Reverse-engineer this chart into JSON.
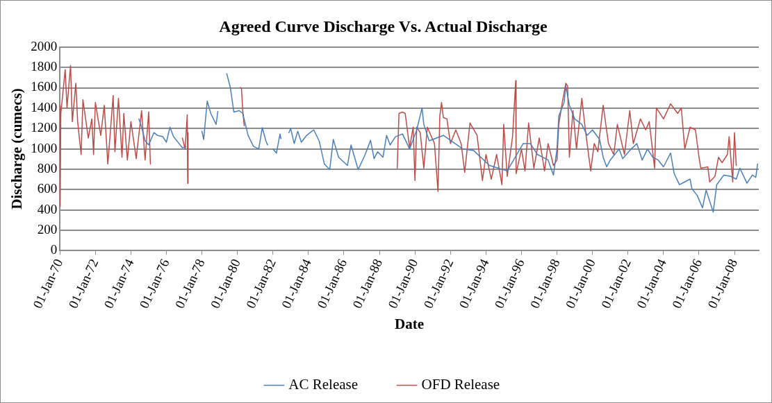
{
  "chart_data": {
    "type": "line",
    "title": "Agreed Curve Discharge Vs. Actual Discharge",
    "xlabel": "Date",
    "ylabel": "Discharge (cumecs)",
    "xlim": [
      "1970-01-01",
      "2009-05-15"
    ],
    "xticks": [
      {
        "value": "1970-01-01",
        "label": "01-Jan-70"
      },
      {
        "value": "1972-01-01",
        "label": "01-Jan-72"
      },
      {
        "value": "1974-01-01",
        "label": "01-Jan-74"
      },
      {
        "value": "1976-01-01",
        "label": "01-Jan-76"
      },
      {
        "value": "1978-01-01",
        "label": "01-Jan-78"
      },
      {
        "value": "1980-01-01",
        "label": "01-Jan-80"
      },
      {
        "value": "1982-01-01",
        "label": "01-Jan-82"
      },
      {
        "value": "1984-01-01",
        "label": "01-Jan-84"
      },
      {
        "value": "1986-01-01",
        "label": "01-Jan-86"
      },
      {
        "value": "1988-01-01",
        "label": "01-Jan-88"
      },
      {
        "value": "1990-01-01",
        "label": "01-Jan-90"
      },
      {
        "value": "1992-01-01",
        "label": "01-Jan-92"
      },
      {
        "value": "1994-01-01",
        "label": "01-Jan-94"
      },
      {
        "value": "1996-01-01",
        "label": "01-Jan-96"
      },
      {
        "value": "1998-01-01",
        "label": "01-Jan-98"
      },
      {
        "value": "2000-01-01",
        "label": "01-Jan-00"
      },
      {
        "value": "2002-01-01",
        "label": "01-Jan-02"
      },
      {
        "value": "2004-01-01",
        "label": "01-Jan-04"
      },
      {
        "value": "2006-01-01",
        "label": "01-Jan-06"
      },
      {
        "value": "2008-01-01",
        "label": "01-Jan-08"
      }
    ],
    "ylim": [
      0,
      2000
    ],
    "yticks": [
      0,
      200,
      400,
      600,
      800,
      1000,
      1200,
      1400,
      1600,
      1800,
      2000
    ],
    "grid": "y",
    "legend": "bottom",
    "marker": "none",
    "line_style": "solid",
    "series": [
      {
        "name": "AC Release",
        "color": "#4a7ebb",
        "x": [
          "1974-06-14",
          "1974-08-08",
          "1974-10-20",
          "1975-01-01",
          "1975-04-20",
          "1975-07-02",
          "1975-10-20",
          "1976-01-01",
          "1976-03-14",
          "1976-05-27",
          "1976-11-25",
          "1977-02-06",
          "1977-08-01",
          "1978-01-01",
          "1978-02-06",
          "1978-04-20",
          "1978-07-02",
          "1978-10-20",
          "1978-11-25",
          "1979-02-01",
          "1979-05-27",
          "1979-08-08",
          "1979-10-20",
          "1980-02-06",
          "1980-04-20",
          "1980-08-08",
          "1980-11-25",
          "1981-03-14",
          "1981-05-27",
          "1981-08-08",
          "1981-09-13",
          "1981-11-01",
          "1982-01-01",
          "1982-03-14",
          "1982-05-27",
          "1982-06-14",
          "1982-08-01",
          "1982-11-25",
          "1983-01-01",
          "1983-03-14",
          "1983-05-27",
          "1983-08-08",
          "1983-11-25",
          "1984-04-20",
          "1984-08-08",
          "1984-11-25",
          "1985-03-14",
          "1985-05-27",
          "1985-09-13",
          "1986-03-14",
          "1986-05-27",
          "1986-10-20",
          "1987-03-14",
          "1987-07-02",
          "1987-09-13",
          "1987-11-25",
          "1988-03-14",
          "1988-05-27",
          "1988-08-08",
          "1988-11-25",
          "1989-04-20",
          "1989-09-13",
          "1990-02-06",
          "1990-05-27",
          "1990-07-02",
          "1990-10-20",
          "1991-08-08",
          "1992-09-13",
          "1993-04-20",
          "1994-03-14",
          "1995-03-14",
          "1996-02-06",
          "1996-07-02",
          "1996-11-25",
          "1997-07-02",
          "1997-10-20",
          "1998-01-01",
          "1998-02-06",
          "1998-05-27",
          "1998-07-02",
          "1998-09-13",
          "1999-01-01",
          "1999-05-27",
          "1999-09-13",
          "2000-01-01",
          "2000-05-27",
          "2000-08-08",
          "2000-10-20",
          "2001-01-01",
          "2001-07-02",
          "2001-09-13",
          "2002-02-06",
          "2002-07-02",
          "2002-10-20",
          "2003-02-06",
          "2003-05-27",
          "2003-09-13",
          "2004-01-01",
          "2004-05-27",
          "2004-08-08",
          "2004-11-25",
          "2005-03-14",
          "2005-07-02",
          "2005-08-08",
          "2005-11-25",
          "2006-03-14",
          "2006-05-27",
          "2006-10-20",
          "2007-01-01",
          "2007-05-27",
          "2007-10-20",
          "2008-02-06",
          "2008-04-20",
          "2008-09-13",
          "2009-01-01",
          "2009-03-14",
          "2009-04-20"
        ],
        "values": [
          1294,
          1213,
          1079,
          1038,
          1159,
          1132,
          1119,
          1065,
          1213,
          1119,
          1011,
          1020,
          null,
          1173,
          1092,
          1469,
          1348,
          1240,
          1369,
          null,
          1738,
          1603,
          1361,
          1375,
          1348,
          1132,
          1025,
          998,
          1208,
          1079,
          1038,
          null,
          998,
          958,
          1146,
          1100,
          null,
          1159,
          1200,
          1052,
          1173,
          1065,
          1132,
          1186,
          1079,
          850,
          796,
          1092,
          917,
          837,
          1038,
          796,
          944,
          1084,
          904,
          971,
          917,
          1132,
          1038,
          1119,
          1146,
          998,
          1186,
          1402,
          1240,
          1079,
          1132,
          998,
          984,
          837,
          783,
          1052,
          1052,
          944,
          890,
          742,
          998,
          1321,
          1455,
          1617,
          1428,
          1294,
          1240,
          1132,
          1186,
          1092,
          917,
          823,
          890,
          998,
          904,
          984,
          1052,
          890,
          998,
          917,
          890,
          823,
          958,
          756,
          648,
          675,
          702,
          608,
          541,
          420,
          594,
          379,
          648,
          742,
          729,
          702,
          810,
          662,
          742,
          720,
          850
        ]
      },
      {
        "name": "OFD Release",
        "color": "#be4b48",
        "x": [
          "1970-01-01",
          "1970-01-07",
          "1970-01-20",
          "1970-04-20",
          "1970-05-27",
          "1970-08-08",
          "1970-09-13",
          "1970-11-25",
          "1971-01-01",
          "1971-03-14",
          "1971-04-20",
          "1971-08-08",
          "1971-10-20",
          "1971-11-25",
          "1972-01-01",
          "1972-04-20",
          "1972-07-02",
          "1972-09-13",
          "1972-11-25",
          "1973-01-01",
          "1973-02-06",
          "1973-04-20",
          "1973-07-02",
          "1973-08-08",
          "1973-10-20",
          "1974-01-01",
          "1974-04-20",
          "1974-08-08",
          "1974-10-20",
          "1975-01-01",
          "1975-02-06",
          "1976-01-01",
          "1976-11-25",
          "1977-01-20",
          "1977-03-05",
          "1977-03-14",
          "1977-03-22",
          "1978-06-01",
          "1980-03-01",
          "1980-03-25",
          "1980-04-20",
          "1980-05-20",
          "1985-01-01",
          "1989-01-01",
          "1989-02-06",
          "1989-04-20",
          "1989-06-14",
          "1989-09-13",
          "1989-11-25",
          "1990-01-01",
          "1990-02-06",
          "1990-04-20",
          "1990-07-02",
          "1990-09-13",
          "1990-11-25",
          "1991-02-06",
          "1991-04-20",
          "1991-05-27",
          "1991-07-02",
          "1991-08-08",
          "1991-10-20",
          "1992-01-01",
          "1992-04-20",
          "1992-08-08",
          "1992-10-20",
          "1993-02-06",
          "1993-07-02",
          "1993-08-08",
          "1993-10-20",
          "1994-01-01",
          "1994-04-20",
          "1994-08-08",
          "1994-11-25",
          "1995-01-01",
          "1995-03-14",
          "1995-07-02",
          "1995-09-05",
          "1995-09-13",
          "1996-01-01",
          "1996-03-14",
          "1996-05-27",
          "1996-09-13",
          "1997-01-01",
          "1997-04-20",
          "1997-07-02",
          "1997-10-20",
          "1998-01-01",
          "1998-02-06",
          "1998-04-20",
          "1998-07-02",
          "1998-08-08",
          "1998-09-13",
          "1998-11-25",
          "1999-02-06",
          "1999-05-27",
          "1999-08-08",
          "1999-11-25",
          "2000-02-06",
          "2000-04-20",
          "2000-08-08",
          "2000-11-25",
          "2001-03-14",
          "2001-05-27",
          "2001-10-20",
          "2002-02-06",
          "2002-04-20",
          "2002-09-13",
          "2003-01-01",
          "2003-03-14",
          "2003-07-02",
          "2003-08-08",
          "2004-01-01",
          "2004-05-27",
          "2004-10-20",
          "2005-01-01",
          "2005-03-14",
          "2005-07-02",
          "2005-10-20",
          "2006-01-01",
          "2006-02-06",
          "2006-07-02",
          "2006-08-08",
          "2006-11-25",
          "2007-02-06",
          "2007-04-20",
          "2007-08-08",
          "2007-09-13",
          "2007-11-25",
          "2008-01-01",
          "2008-02-06"
        ],
        "values": [
          1428,
          433,
          1348,
          1778,
          1402,
          1818,
          1267,
          1644,
          1267,
          944,
          1482,
          1106,
          1294,
          944,
          1455,
          1132,
          1428,
          850,
          1294,
          1523,
          971,
          1496,
          917,
          1348,
          890,
          1267,
          904,
          1375,
          890,
          1361,
          850,
          null,
          1106,
          998,
          1334,
          662,
          1159,
          null,
          1603,
          1590,
          1375,
          1227,
          null,
          810,
          1348,
          1361,
          1348,
          1011,
          1213,
          689,
          1213,
          1159,
          810,
          1213,
          1132,
          1052,
          581,
          1321,
          1455,
          1307,
          1294,
          1052,
          1186,
          1052,
          769,
          1254,
          1132,
          984,
          689,
          944,
          702,
          944,
          648,
          1240,
          729,
          1119,
          1670,
          756,
          998,
          783,
          1254,
          810,
          1106,
          783,
          1052,
          837,
          890,
          1240,
          1455,
          1644,
          1617,
          917,
          1375,
          998,
          1496,
          1186,
          783,
          1052,
          971,
          1428,
          1052,
          944,
          1240,
          944,
          1375,
          1052,
          1294,
          1186,
          1267,
          810,
          1402,
          1294,
          1442,
          1348,
          1402,
          998,
          1213,
          1186,
          917,
          810,
          823,
          675,
          729,
          917,
          864,
          944,
          1119,
          675,
          1159,
          837
        ]
      }
    ]
  }
}
